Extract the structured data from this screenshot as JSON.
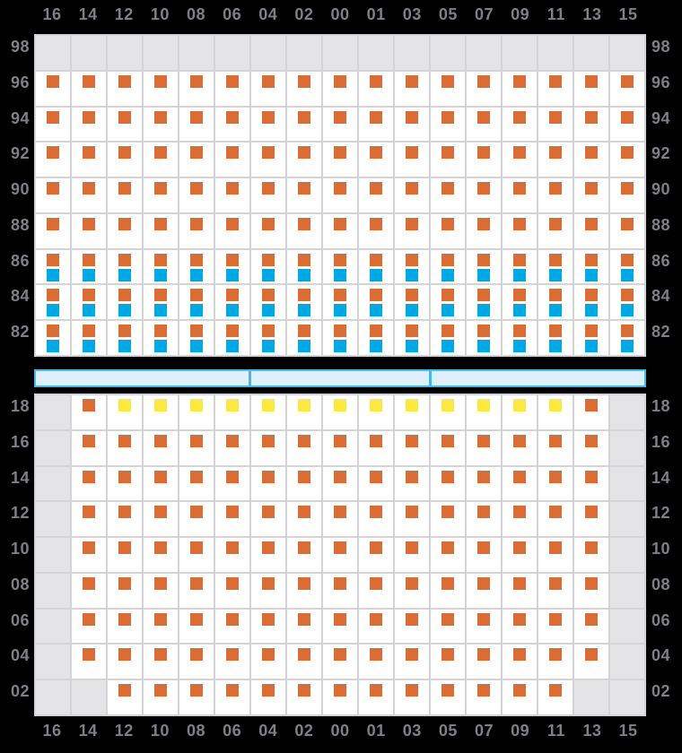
{
  "palette": {
    "bg": "#000000",
    "cell": "#ffffff",
    "cellEmpty": "#e4e4e6",
    "line": "#d4d4d8",
    "orange": "#d96d33",
    "blue": "#00a9e3",
    "yellow": "#fbe841",
    "barFill": "#def0fb",
    "barBorder": "#45b8ec",
    "label": "#7f7f87"
  },
  "column_labels": [
    "16",
    "14",
    "12",
    "10",
    "08",
    "06",
    "04",
    "02",
    "00",
    "01",
    "03",
    "05",
    "07",
    "09",
    "11",
    "13",
    "15"
  ],
  "cell_state_legend": {
    "e": "empty-gray-cell",
    "o": "orange-square",
    "ob": "orange-square-over-blue-square",
    "y": "yellow-square"
  },
  "top_panel": {
    "rows": [
      {
        "label": "98",
        "cells": [
          "e",
          "e",
          "e",
          "e",
          "e",
          "e",
          "e",
          "e",
          "e",
          "e",
          "e",
          "e",
          "e",
          "e",
          "e",
          "e",
          "e"
        ]
      },
      {
        "label": "96",
        "cells": [
          "o",
          "o",
          "o",
          "o",
          "o",
          "o",
          "o",
          "o",
          "o",
          "o",
          "o",
          "o",
          "o",
          "o",
          "o",
          "o",
          "o"
        ]
      },
      {
        "label": "94",
        "cells": [
          "o",
          "o",
          "o",
          "o",
          "o",
          "o",
          "o",
          "o",
          "o",
          "o",
          "o",
          "o",
          "o",
          "o",
          "o",
          "o",
          "o"
        ]
      },
      {
        "label": "92",
        "cells": [
          "o",
          "o",
          "o",
          "o",
          "o",
          "o",
          "o",
          "o",
          "o",
          "o",
          "o",
          "o",
          "o",
          "o",
          "o",
          "o",
          "o"
        ]
      },
      {
        "label": "90",
        "cells": [
          "o",
          "o",
          "o",
          "o",
          "o",
          "o",
          "o",
          "o",
          "o",
          "o",
          "o",
          "o",
          "o",
          "o",
          "o",
          "o",
          "o"
        ]
      },
      {
        "label": "88",
        "cells": [
          "o",
          "o",
          "o",
          "o",
          "o",
          "o",
          "o",
          "o",
          "o",
          "o",
          "o",
          "o",
          "o",
          "o",
          "o",
          "o",
          "o"
        ]
      },
      {
        "label": "86",
        "cells": [
          "ob",
          "ob",
          "ob",
          "ob",
          "ob",
          "ob",
          "ob",
          "ob",
          "ob",
          "ob",
          "ob",
          "ob",
          "ob",
          "ob",
          "ob",
          "ob",
          "ob"
        ]
      },
      {
        "label": "84",
        "cells": [
          "ob",
          "ob",
          "ob",
          "ob",
          "ob",
          "ob",
          "ob",
          "ob",
          "ob",
          "ob",
          "ob",
          "ob",
          "ob",
          "ob",
          "ob",
          "ob",
          "ob"
        ]
      },
      {
        "label": "82",
        "cells": [
          "ob",
          "ob",
          "ob",
          "ob",
          "ob",
          "ob",
          "ob",
          "ob",
          "ob",
          "ob",
          "ob",
          "ob",
          "ob",
          "ob",
          "ob",
          "ob",
          "ob"
        ]
      }
    ]
  },
  "divider_bar": {
    "segment_col_spans": [
      6,
      5,
      6
    ]
  },
  "bottom_panel": {
    "rows": [
      {
        "label": "18",
        "cells": [
          "e",
          "o",
          "y",
          "y",
          "y",
          "y",
          "y",
          "y",
          "y",
          "y",
          "y",
          "y",
          "y",
          "y",
          "y",
          "o",
          "e"
        ]
      },
      {
        "label": "16",
        "cells": [
          "e",
          "o",
          "o",
          "o",
          "o",
          "o",
          "o",
          "o",
          "o",
          "o",
          "o",
          "o",
          "o",
          "o",
          "o",
          "o",
          "e"
        ]
      },
      {
        "label": "14",
        "cells": [
          "e",
          "o",
          "o",
          "o",
          "o",
          "o",
          "o",
          "o",
          "o",
          "o",
          "o",
          "o",
          "o",
          "o",
          "o",
          "o",
          "e"
        ]
      },
      {
        "label": "12",
        "cells": [
          "e",
          "o",
          "o",
          "o",
          "o",
          "o",
          "o",
          "o",
          "o",
          "o",
          "o",
          "o",
          "o",
          "o",
          "o",
          "o",
          "e"
        ]
      },
      {
        "label": "10",
        "cells": [
          "e",
          "o",
          "o",
          "o",
          "o",
          "o",
          "o",
          "o",
          "o",
          "o",
          "o",
          "o",
          "o",
          "o",
          "o",
          "o",
          "e"
        ]
      },
      {
        "label": "08",
        "cells": [
          "e",
          "o",
          "o",
          "o",
          "o",
          "o",
          "o",
          "o",
          "o",
          "o",
          "o",
          "o",
          "o",
          "o",
          "o",
          "o",
          "e"
        ]
      },
      {
        "label": "06",
        "cells": [
          "e",
          "o",
          "o",
          "o",
          "o",
          "o",
          "o",
          "o",
          "o",
          "o",
          "o",
          "o",
          "o",
          "o",
          "o",
          "o",
          "e"
        ]
      },
      {
        "label": "04",
        "cells": [
          "e",
          "o",
          "o",
          "o",
          "o",
          "o",
          "o",
          "o",
          "o",
          "o",
          "o",
          "o",
          "o",
          "o",
          "o",
          "o",
          "e"
        ]
      },
      {
        "label": "02",
        "cells": [
          "e",
          "e",
          "o",
          "o",
          "o",
          "o",
          "o",
          "o",
          "o",
          "o",
          "o",
          "o",
          "o",
          "o",
          "o",
          "e",
          "e"
        ]
      }
    ]
  }
}
